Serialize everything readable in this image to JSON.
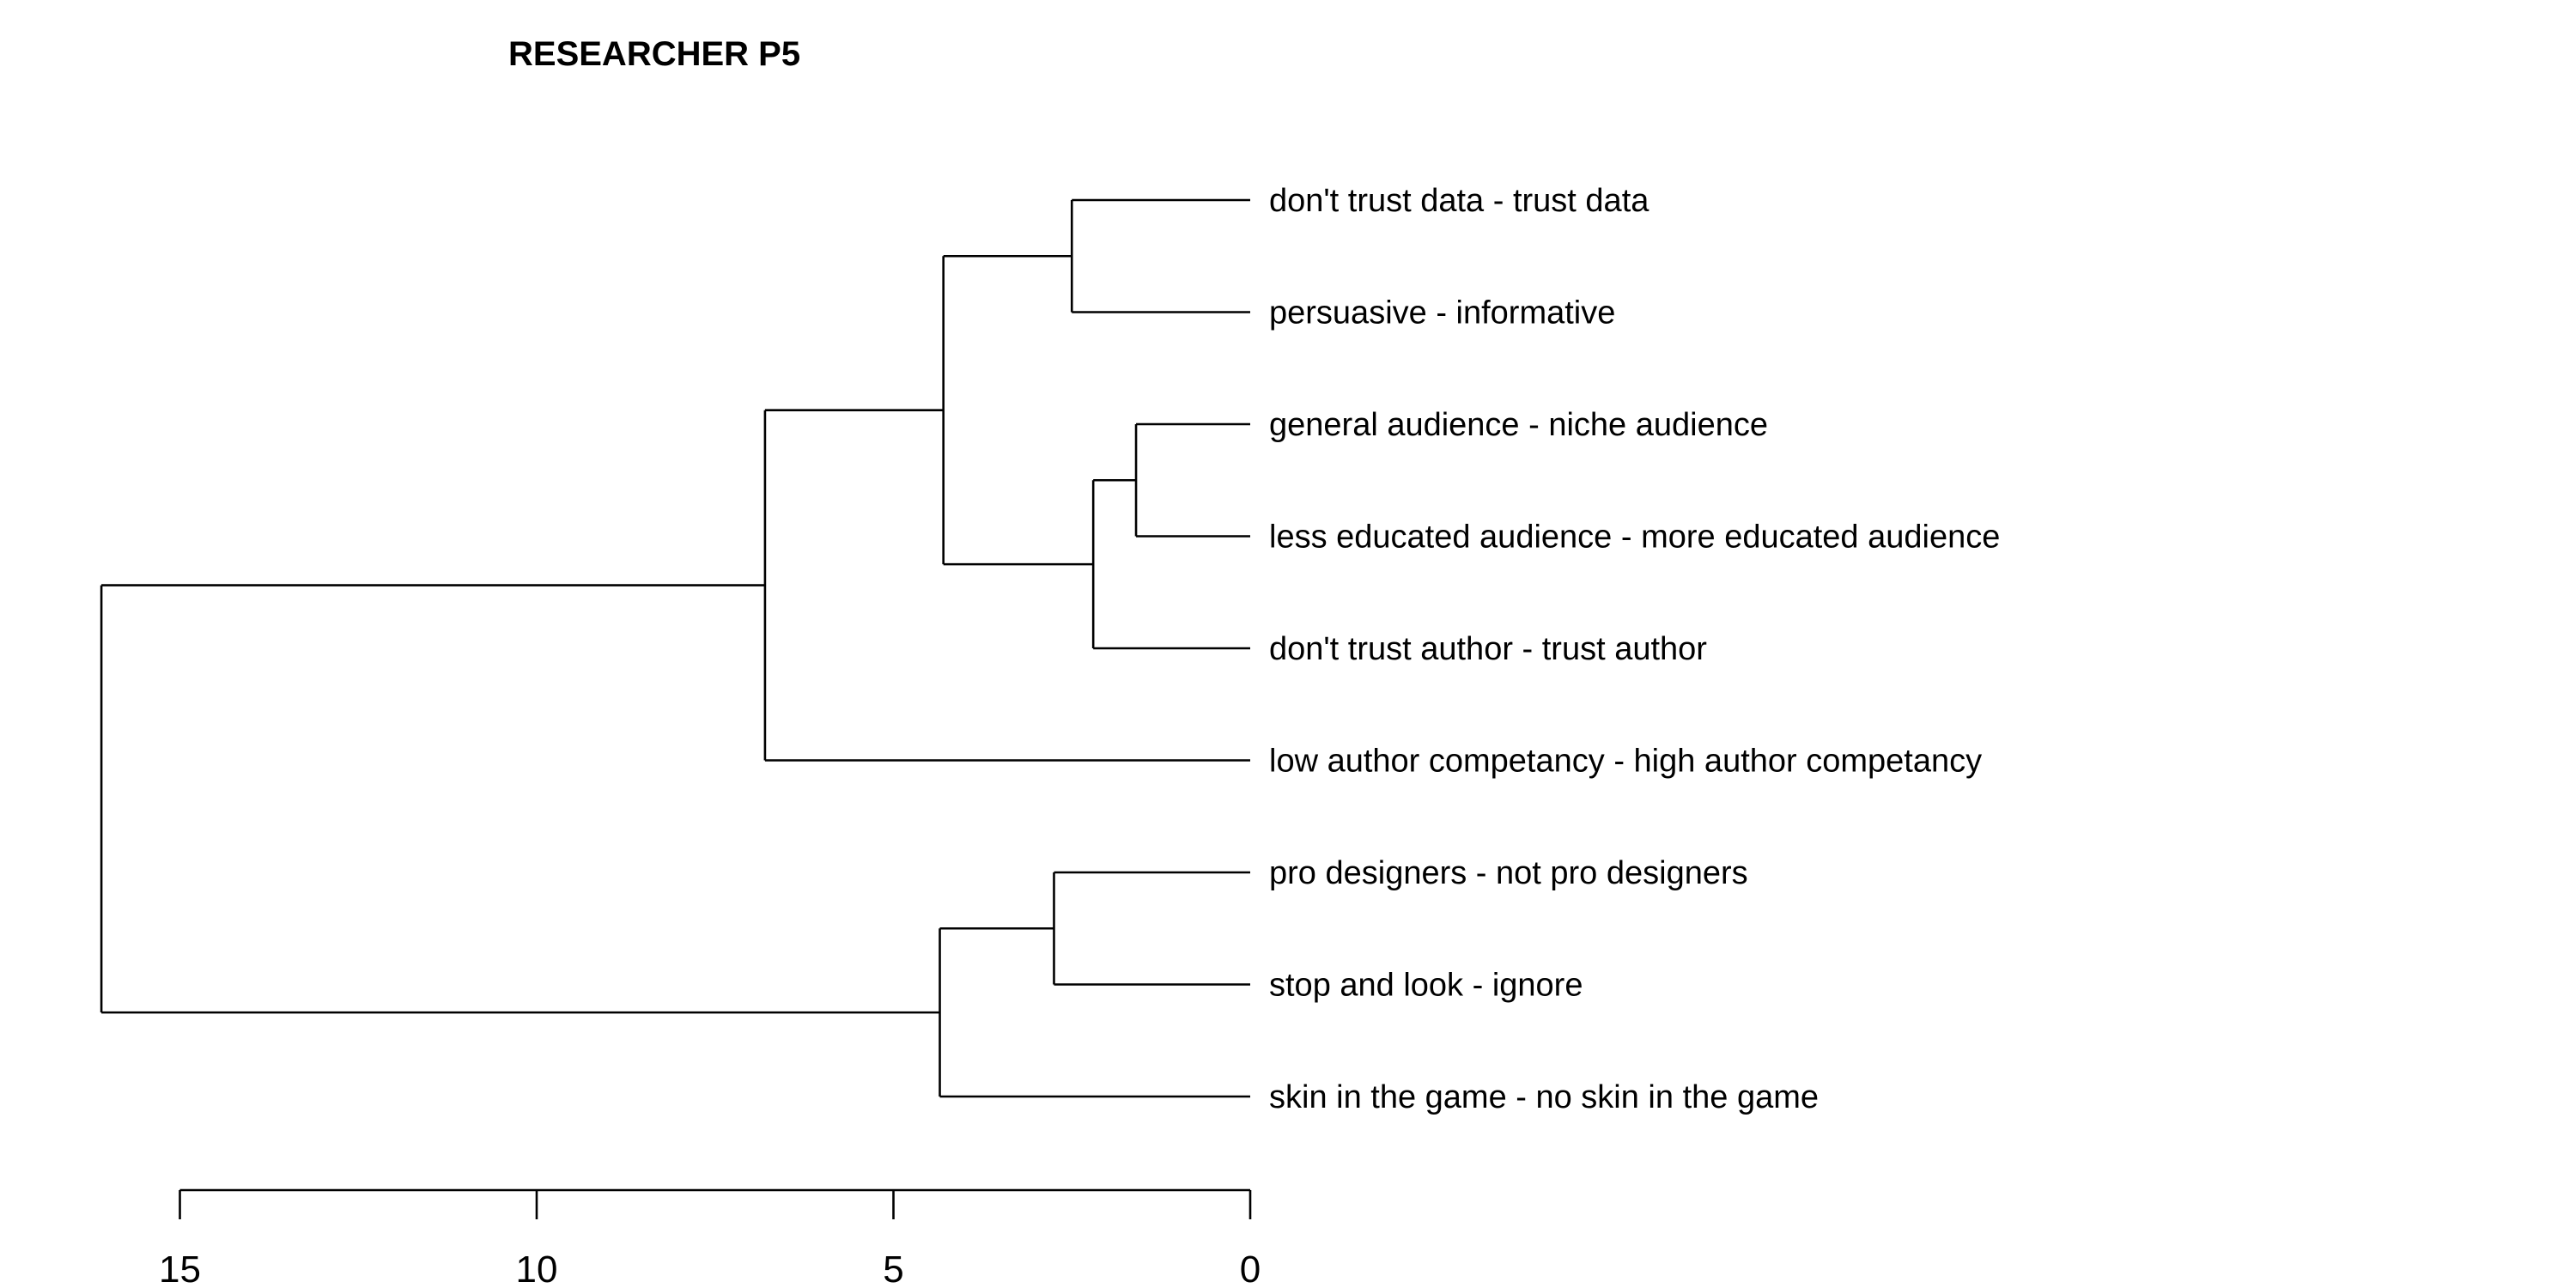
{
  "chart_data": {
    "type": "dendrogram",
    "title": "RESEARCHER P5",
    "x_axis": {
      "direction": "reversed",
      "range": [
        15,
        0
      ],
      "ticks": [
        15,
        10,
        5,
        0
      ]
    },
    "leaves": [
      "don't trust data - trust data",
      "persuasive - informative",
      "general audience - niche audience",
      "less educated audience - more educated audience",
      "don't trust author - trust author",
      "low author competancy - high author competancy",
      "pro designers - not pro designers",
      "stop and look - ignore",
      "skin in the game - no skin in the game"
    ],
    "merges": [
      {
        "id": "c1",
        "children": [
          "L2",
          "L3"
        ],
        "height": 1.6
      },
      {
        "id": "c2",
        "children": [
          "c1",
          "L4"
        ],
        "height": 2.2
      },
      {
        "id": "c3",
        "children": [
          "L0",
          "L1"
        ],
        "height": 2.5
      },
      {
        "id": "c4",
        "children": [
          "L6",
          "L7"
        ],
        "height": 2.75
      },
      {
        "id": "c5",
        "children": [
          "c3",
          "c2"
        ],
        "height": 4.3
      },
      {
        "id": "c6",
        "children": [
          "c4",
          "L8"
        ],
        "height": 4.35
      },
      {
        "id": "c7",
        "children": [
          "c5",
          "L5"
        ],
        "height": 6.8
      },
      {
        "id": "c8",
        "children": [
          "c7",
          "c6"
        ],
        "height": 16.1
      }
    ]
  }
}
